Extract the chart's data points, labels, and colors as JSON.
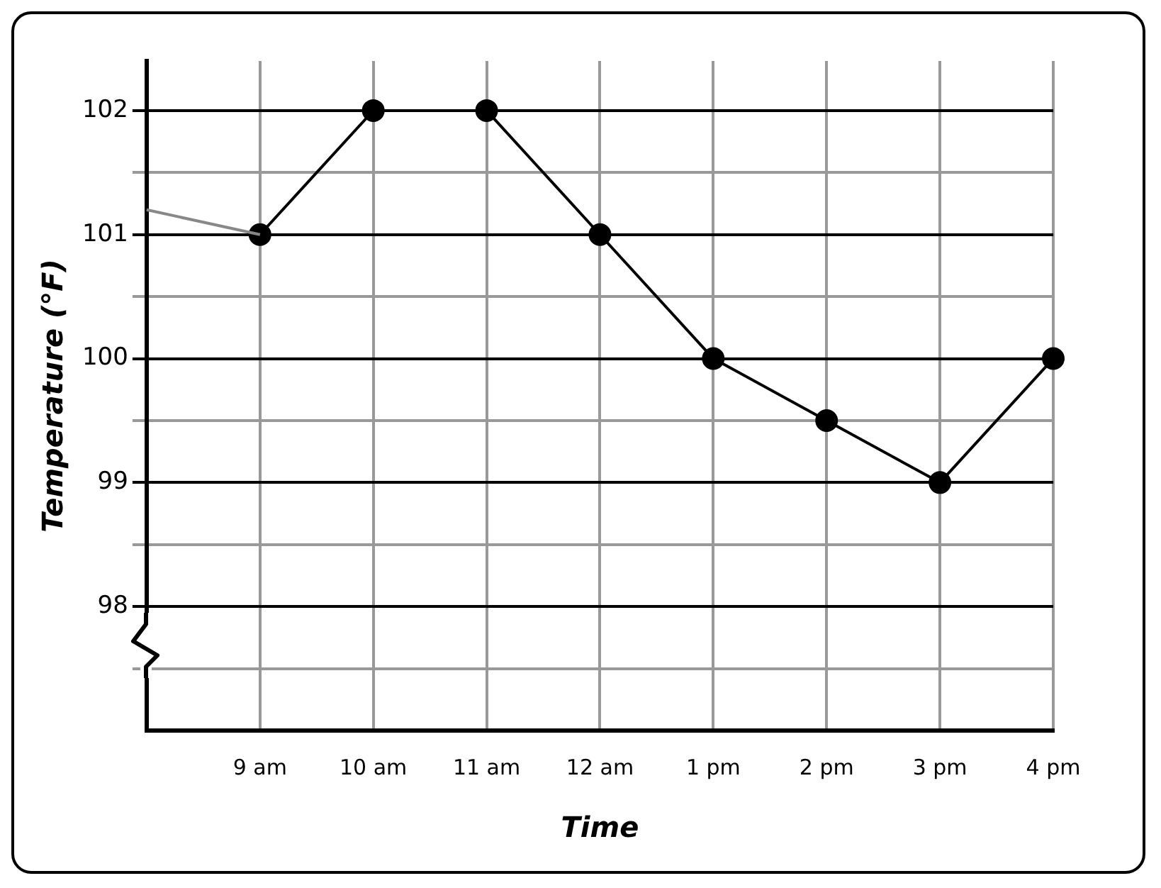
{
  "chart_data": {
    "type": "line",
    "xlabel": "Time",
    "ylabel": "Temperature (°F)",
    "categories": [
      null,
      "9 am",
      "10 am",
      "11 am",
      "12 am",
      "1 pm",
      "2 pm",
      "3 pm",
      "4 pm"
    ],
    "series": [
      {
        "color": "#888888",
        "values": [
          101.2,
          101,
          null,
          null,
          null,
          null,
          null,
          null,
          null
        ],
        "marker": "none"
      },
      {
        "color": "#000000",
        "values": [
          null,
          101,
          102,
          102,
          101,
          100,
          99.5,
          99,
          100
        ],
        "marker": "circle"
      }
    ],
    "ylim": [
      97,
      102.4
    ],
    "yticks": [
      {
        "value": 97.5,
        "label": null
      },
      98,
      {
        "value": 98.5,
        "label": null
      },
      99,
      {
        "value": 99.5,
        "label": null
      },
      100,
      {
        "value": 100.5,
        "label": null
      },
      101,
      {
        "value": 101.5,
        "label": null
      },
      102
    ],
    "grid": true,
    "legend": false,
    "line_style": "solid"
  }
}
